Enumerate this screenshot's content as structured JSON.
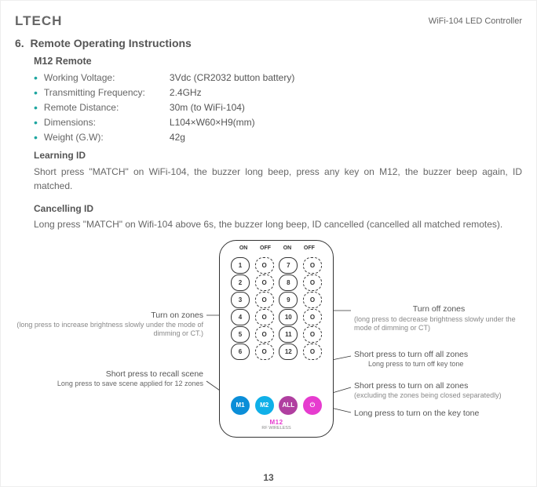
{
  "header": {
    "logo": "LTECH",
    "doc_title": "WiFi-104 LED Controller"
  },
  "section": {
    "number": "6.",
    "title": "Remote Operating Instructions",
    "subtitle": "M12 Remote"
  },
  "specs": [
    {
      "label": "Working Voltage:",
      "value": "3Vdc (CR2032 button battery)"
    },
    {
      "label": "Transmitting Frequency:",
      "value": "2.4GHz"
    },
    {
      "label": "Remote Distance:",
      "value": "30m (to WiFi-104)"
    },
    {
      "label": "Dimensions:",
      "value": "L104×W60×H9(mm)"
    },
    {
      "label": "Weight (G.W):",
      "value": "42g"
    }
  ],
  "learning": {
    "heading": "Learning ID",
    "body": "Short press  \"MATCH\" on WiFi-104, the buzzer long beep, press any key on M12, the buzzer beep again, ID matched."
  },
  "cancelling": {
    "heading": "Cancelling ID",
    "body": "Long press \"MATCH\" on Wifi-104  above 6s, the buzzer long beep, ID cancelled (cancelled all matched remotes)."
  },
  "remote": {
    "col_headers": [
      "ON",
      "OFF",
      "ON",
      "OFF"
    ],
    "rows": [
      [
        "1",
        "O",
        "7",
        "O"
      ],
      [
        "2",
        "O",
        "8",
        "O"
      ],
      [
        "3",
        "O",
        "9",
        "O"
      ],
      [
        "4",
        "O",
        "10",
        "O"
      ],
      [
        "5",
        "O",
        "11",
        "O"
      ],
      [
        "6",
        "O",
        "12",
        "O"
      ]
    ],
    "bottom": [
      "M1",
      "M2",
      "ALL",
      "⏻"
    ],
    "brand": "M12",
    "brand_sub": "RF WIRELESS"
  },
  "callouts": {
    "turn_on": {
      "title": "Turn on zones",
      "sub": "(long press to increase brightness slowly under the mode of dimming or CT.)"
    },
    "recall": {
      "title": "Short press to recall scene",
      "sub": "Long press to save scene applied for 12 zones"
    },
    "turn_off": {
      "title": "Turn off zones",
      "sub": "(long press to decrease brightness slowly under the mode of dimming or CT)"
    },
    "off_all": {
      "title": "Short press to turn off all zones",
      "sub": "Long press to turn off key tone"
    },
    "on_all": {
      "title": "Short press to turn on all zones",
      "sub": "(excluding the zones being closed separatedly)"
    },
    "key_tone": "Long press to turn on the key tone"
  },
  "page_number": "13",
  "style": {
    "accent": "#1ea6a0",
    "text": "#666",
    "heading": "#555"
  }
}
